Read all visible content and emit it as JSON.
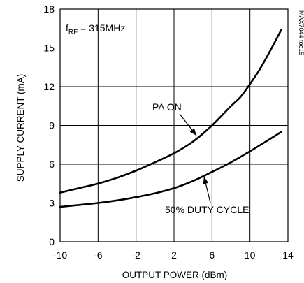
{
  "chart_data": {
    "type": "line",
    "title": "",
    "xlabel": "OUTPUT POWER (dBm)",
    "ylabel": "SUPPLY CURRENT (mA)",
    "xlim": [
      -10,
      14
    ],
    "ylim": [
      0,
      18
    ],
    "x_ticks": [
      "-10",
      "-6",
      "-2",
      "2",
      "6",
      "10",
      "14"
    ],
    "y_ticks": [
      "0",
      "3",
      "6",
      "9",
      "12",
      "15",
      "18"
    ],
    "grid": true,
    "condition": {
      "main": "f",
      "sub": "RF",
      "rest": " = 315MHz"
    },
    "side_label": "MAX7044 toc15",
    "series": [
      {
        "name": "PA ON",
        "color": "#000000",
        "x": [
          -10,
          -8,
          -6,
          -4,
          -2,
          0,
          2,
          4,
          6,
          8,
          9,
          10,
          11,
          12,
          13.3
        ],
        "y": [
          3.8,
          4.15,
          4.5,
          4.95,
          5.5,
          6.15,
          6.85,
          7.75,
          9.0,
          10.5,
          11.2,
          12.2,
          13.3,
          14.6,
          16.4
        ]
      },
      {
        "name": "50% DUTY CYCLE",
        "color": "#000000",
        "x": [
          -10,
          -8,
          -6,
          -4,
          -2,
          0,
          2,
          4,
          6,
          8,
          10,
          12,
          13.3
        ],
        "y": [
          2.7,
          2.85,
          3.0,
          3.2,
          3.45,
          3.75,
          4.15,
          4.7,
          5.4,
          6.15,
          7.0,
          7.9,
          8.5
        ]
      }
    ]
  }
}
